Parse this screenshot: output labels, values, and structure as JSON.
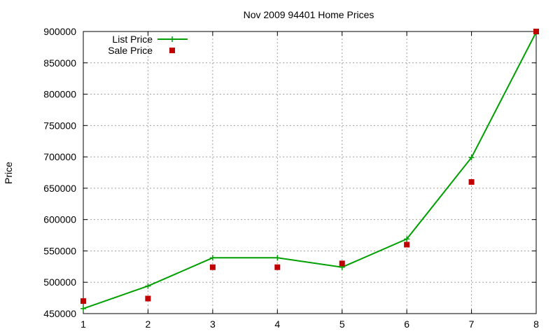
{
  "chart_data": {
    "type": "line",
    "title": "Nov 2009 94401 Home Prices",
    "xlabel": "",
    "ylabel": "Price",
    "xlim": [
      1,
      8
    ],
    "ylim": [
      450000,
      900000
    ],
    "x_ticks": [
      "1",
      "2",
      "3",
      "4",
      "5",
      "6",
      "7",
      "8"
    ],
    "y_ticks": [
      "450000",
      "500000",
      "550000",
      "600000",
      "650000",
      "700000",
      "750000",
      "800000",
      "850000",
      "900000"
    ],
    "grid": true,
    "legend_position": "top-left",
    "x": [
      1,
      2,
      3,
      4,
      5,
      6,
      7,
      8
    ],
    "series": [
      {
        "name": "List Price",
        "style": "line-with-plus-markers",
        "color": "#00a000",
        "values": [
          458000,
          494000,
          539000,
          539000,
          524000,
          569000,
          699000,
          899000
        ]
      },
      {
        "name": "Sale Price",
        "style": "square-points",
        "color": "#c00000",
        "values": [
          470000,
          474000,
          524000,
          524000,
          530000,
          560000,
          660000,
          900000
        ]
      }
    ]
  }
}
